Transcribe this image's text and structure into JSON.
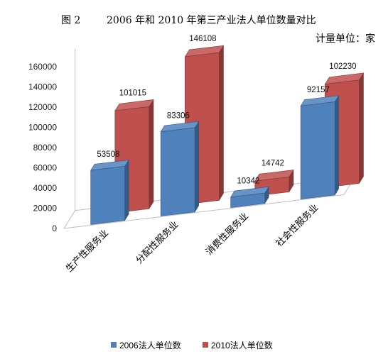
{
  "title": {
    "figure_no": "图 2",
    "text": "2006 年和 2010 年第三产业法人单位数量对比"
  },
  "unit_label": "计量单位：家",
  "chart_data": {
    "type": "bar",
    "categories": [
      "生产性服务业",
      "分配性服务业",
      "消费性服务业",
      "社会性服务业"
    ],
    "series": [
      {
        "name": "2006法人单位数",
        "values": [
          53508,
          83306,
          10342,
          92157
        ],
        "color": "#4F81BD"
      },
      {
        "name": "2010法人单位数",
        "values": [
          101015,
          146108,
          14742,
          102230
        ],
        "color": "#C0504D"
      }
    ],
    "yticks": [
      "0",
      "20000",
      "40000",
      "60000",
      "80000",
      "100000",
      "120000",
      "140000",
      "160000"
    ],
    "ylim": [
      0,
      160000
    ],
    "grid": false,
    "legend_position": "bottom"
  }
}
